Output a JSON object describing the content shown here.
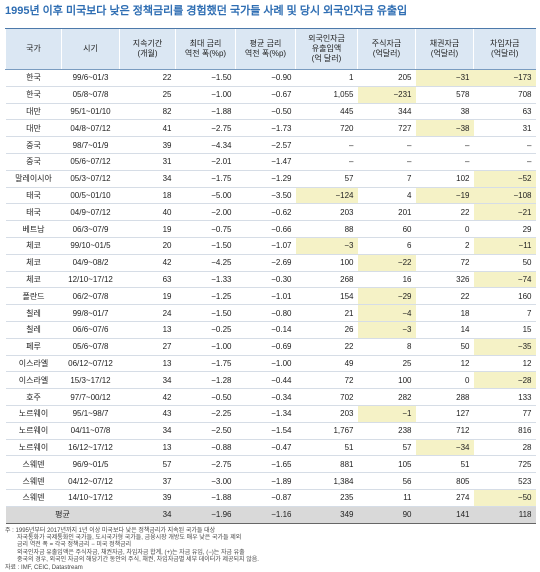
{
  "title": "1995년 이후 미국보다 낮은 정책금리를 경험했던 국가들 사례 및 당시 외국인자금 유출입",
  "table": {
    "header": [
      "국가",
      "시기",
      "지속기간\n(개월)",
      "최대 금리\n역전 폭(%p)",
      "평균 금리\n역전 폭(%p)",
      "외국인자금\n유출입액\n(억 달러)",
      "주식자금\n(억달러)",
      "채권자금\n(억달러)",
      "차입자금\n(억달러)"
    ],
    "rows": [
      [
        "한국",
        "99/6~01/3",
        "22",
        "−1.50",
        "−0.90",
        "1",
        "205",
        "−31",
        "−173"
      ],
      [
        "한국",
        "05/8~07/8",
        "25",
        "−1.00",
        "−0.67",
        "1,055",
        "−231",
        "578",
        "708"
      ],
      [
        "대만",
        "95/1~01/10",
        "82",
        "−1.88",
        "−0.50",
        "445",
        "344",
        "38",
        "63"
      ],
      [
        "대만",
        "04/8~07/12",
        "41",
        "−2.75",
        "−1.73",
        "720",
        "727",
        "−38",
        "31"
      ],
      [
        "중국",
        "98/7~01/9",
        "39",
        "−4.34",
        "−2.57",
        "–",
        "–",
        "–",
        "–"
      ],
      [
        "중국",
        "05/6~07/12",
        "31",
        "−2.01",
        "−1.47",
        "–",
        "–",
        "–",
        "–"
      ],
      [
        "말레이시아",
        "05/3~07/12",
        "34",
        "−1.75",
        "−1.29",
        "57",
        "7",
        "102",
        "−52"
      ],
      [
        "태국",
        "00/5~01/10",
        "18",
        "−5.00",
        "−3.50",
        "−124",
        "4",
        "−19",
        "−108"
      ],
      [
        "태국",
        "04/9~07/12",
        "40",
        "−2.00",
        "−0.62",
        "203",
        "201",
        "22",
        "−21"
      ],
      [
        "베트남",
        "06/3~07/9",
        "19",
        "−0.75",
        "−0.66",
        "88",
        "60",
        "0",
        "29"
      ],
      [
        "체코",
        "99/10~01/5",
        "20",
        "−1.50",
        "−1.07",
        "−3",
        "6",
        "2",
        "−11"
      ],
      [
        "체코",
        "04/9~08/2",
        "42",
        "−4.25",
        "−2.69",
        "100",
        "−22",
        "72",
        "50"
      ],
      [
        "체코",
        "12/10~17/12",
        "63",
        "−1.33",
        "−0.30",
        "268",
        "16",
        "326",
        "−74"
      ],
      [
        "폴란드",
        "06/2~07/8",
        "19",
        "−1.25",
        "−1.01",
        "154",
        "−29",
        "22",
        "160"
      ],
      [
        "칠레",
        "99/8~01/7",
        "24",
        "−1.50",
        "−0.80",
        "21",
        "−4",
        "18",
        "7"
      ],
      [
        "칠레",
        "06/6~07/6",
        "13",
        "−0.25",
        "−0.14",
        "26",
        "−3",
        "14",
        "15"
      ],
      [
        "페루",
        "05/6~07/8",
        "27",
        "−1.00",
        "−0.69",
        "22",
        "8",
        "50",
        "−35"
      ],
      [
        "이스라엘",
        "06/12~07/12",
        "13",
        "−1.75",
        "−1.00",
        "49",
        "25",
        "12",
        "12"
      ],
      [
        "이스라엘",
        "15/3~17/12",
        "34",
        "−1.28",
        "−0.44",
        "72",
        "100",
        "0",
        "−28"
      ],
      [
        "호주",
        "97/7~00/12",
        "42",
        "−0.50",
        "−0.34",
        "702",
        "282",
        "288",
        "133"
      ],
      [
        "노르웨이",
        "95/1~98/7",
        "43",
        "−2.25",
        "−1.34",
        "203",
        "−1",
        "127",
        "77"
      ],
      [
        "노르웨이",
        "04/11~07/8",
        "34",
        "−2.50",
        "−1.54",
        "1,767",
        "238",
        "712",
        "816"
      ],
      [
        "노르웨이",
        "16/12~17/12",
        "13",
        "−0.88",
        "−0.47",
        "51",
        "57",
        "−34",
        "28"
      ],
      [
        "스웨덴",
        "96/9~01/5",
        "57",
        "−2.75",
        "−1.65",
        "881",
        "105",
        "51",
        "725"
      ],
      [
        "스웨덴",
        "04/12~07/12",
        "37",
        "−3.00",
        "−1.89",
        "1,384",
        "56",
        "805",
        "523"
      ],
      [
        "스웨덴",
        "14/10~17/12",
        "39",
        "−1.88",
        "−0.87",
        "235",
        "11",
        "274",
        "−50"
      ]
    ],
    "average": [
      "평균",
      "34",
      "−1.96",
      "−1.16",
      "349",
      "90",
      "141",
      "118"
    ]
  },
  "notes": [
    "주 : 1995년부터 2017년까지 1년 이상 미국보다 낮은 정책금리가 지속된 국가들 대상",
    "자국통화가 국제통화인 국가들, 도시국가형 국가들, 금융시장 개방도 매우 낮은 국가들 제외",
    "금리 역전 폭 = 각국 정책금리 − 미국 정책금리",
    "외국인자금 유출입액은 주식자금, 채권자금, 차입자금 합계, (+)는 자금 유입, (−)는 자금 유출",
    "중국의 경우, 외국인 자금의 해당기간 동안의 주식, 채권, 차입자금별 세부 데이터가 제공되지 않음."
  ],
  "source": "자료 : IMF, CEIC, Datastream"
}
